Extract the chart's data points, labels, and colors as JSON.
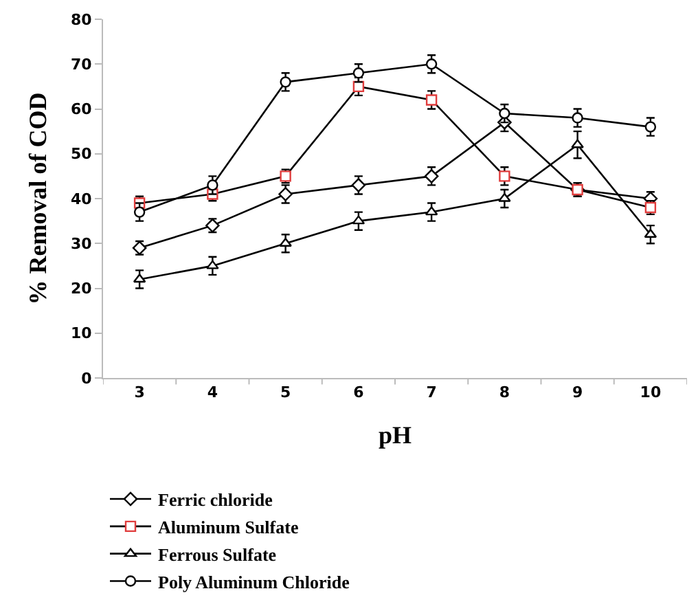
{
  "chart_data": {
    "type": "line",
    "xlabel": "pH",
    "ylabel": "% Removal of COD",
    "categories": [
      "3",
      "4",
      "5",
      "6",
      "7",
      "8",
      "9",
      "10"
    ],
    "series": [
      {
        "name": "Ferric chloride",
        "color": "#000000",
        "marker": "diamond",
        "values": [
          29,
          34,
          41,
          43,
          45,
          57,
          42,
          40
        ],
        "errors": [
          1.5,
          1.5,
          2,
          2,
          2,
          2,
          1.5,
          1.5
        ]
      },
      {
        "name": "Aluminum Sulfate",
        "color": "#e03c3c",
        "marker": "square",
        "values": [
          39,
          41,
          45,
          65,
          62,
          45,
          42,
          38
        ],
        "errors": [
          1.5,
          1.5,
          1.5,
          2,
          2,
          2,
          1.5,
          1.5
        ]
      },
      {
        "name": "Ferrous Sulfate",
        "color": "#000000",
        "marker": "triangle",
        "values": [
          22,
          25,
          30,
          35,
          37,
          40,
          52,
          32
        ],
        "errors": [
          2,
          2,
          2,
          2,
          2,
          2,
          3,
          2
        ]
      },
      {
        "name": "Poly Aluminum Chloride",
        "color": "#000000",
        "marker": "circle",
        "values": [
          37,
          43,
          66,
          68,
          70,
          59,
          58,
          56
        ],
        "errors": [
          2,
          2,
          2,
          2,
          2,
          2,
          2,
          2
        ]
      }
    ],
    "ylim": [
      0,
      80
    ],
    "yticks": [
      0,
      10,
      20,
      30,
      40,
      50,
      60,
      70,
      80
    ],
    "legend": "bottom",
    "line_style": "solid"
  }
}
